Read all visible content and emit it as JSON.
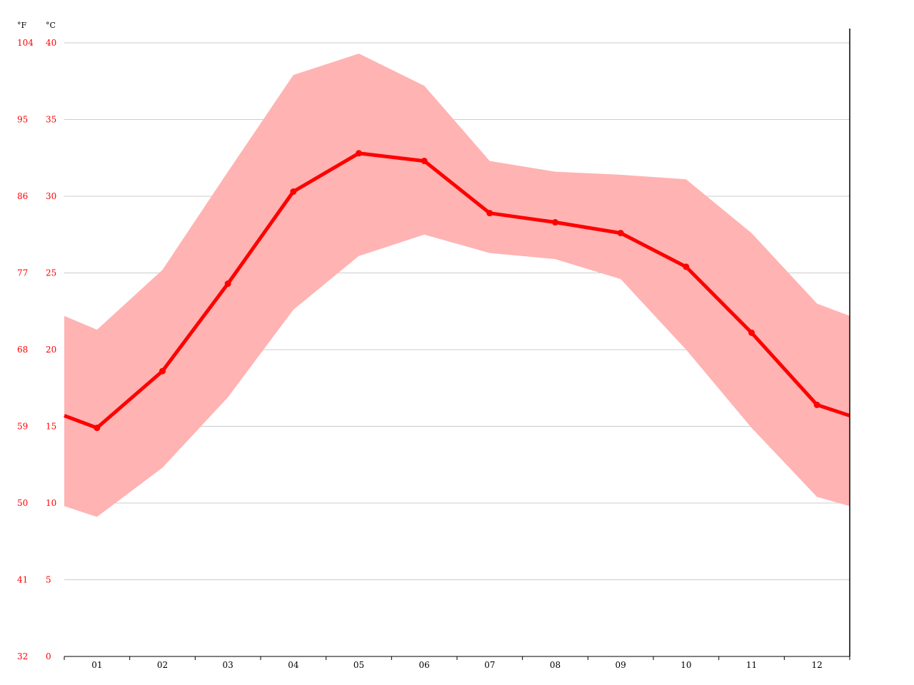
{
  "chart_data": {
    "type": "line",
    "title": "",
    "xlabel": "",
    "ylabel": "",
    "categories": [
      "01",
      "02",
      "03",
      "04",
      "05",
      "06",
      "07",
      "08",
      "09",
      "10",
      "11",
      "12"
    ],
    "series": [
      {
        "values": [
          14.9,
          18.6,
          24.3,
          30.3,
          32.8,
          32.3,
          28.9,
          28.3,
          27.6,
          25.4,
          21.1,
          16.4
        ]
      }
    ],
    "band": {
      "upper": [
        21.3,
        25.2,
        31.6,
        37.9,
        39.3,
        37.2,
        32.3,
        31.6,
        31.4,
        31.1,
        27.6,
        23.0
      ],
      "lower": [
        9.1,
        12.3,
        16.9,
        22.6,
        26.1,
        27.5,
        26.3,
        25.9,
        24.6,
        20.0,
        14.9,
        10.4
      ],
      "edge_left": {
        "upper": 22.2,
        "lower": 9.8,
        "mean": 15.7
      },
      "edge_right": {
        "upper": 22.2,
        "lower": 9.8,
        "mean": 15.7
      }
    },
    "ylim": [
      0,
      40
    ],
    "y_ticks_c": [
      "0",
      "5",
      "10",
      "15",
      "20",
      "25",
      "30",
      "35",
      "40"
    ],
    "y_ticks_f": [
      "32",
      "41",
      "50",
      "59",
      "68",
      "77",
      "86",
      "95",
      "104"
    ],
    "unit_f": "°F",
    "unit_c": "°C",
    "grid": true,
    "colors": {
      "line": "#ff0000",
      "band": "#ffb3b3",
      "grid": "#cccccc",
      "axis_text": "#ff0000",
      "x_text": "#000000"
    }
  }
}
